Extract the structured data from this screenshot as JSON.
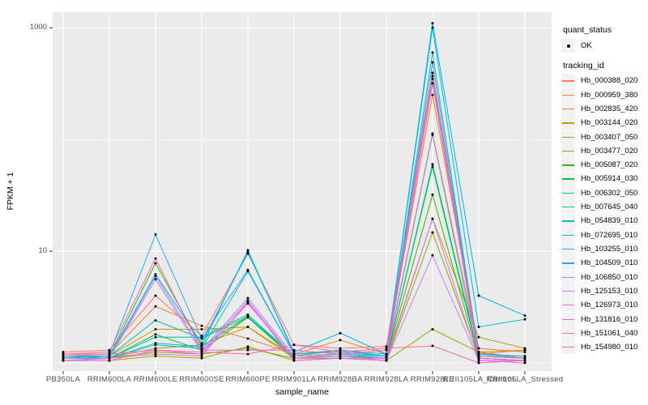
{
  "style": {
    "panel_bg": "#EBEBEB",
    "gridline": "#FFFFFF",
    "point": "#000000",
    "tick_color": "#333333",
    "tick_label_color": "#4D4D4D",
    "axis_title_color": "#000000",
    "legend_key_bg": "#F2F2F2"
  },
  "chart_data": {
    "type": "line",
    "title": "",
    "xlabel": "sample_name",
    "ylabel": "FPKM + 1",
    "y_scale": "log10",
    "ylim": [
      1,
      1320
    ],
    "y_ticks": [
      1000,
      10
    ],
    "y_major_gridlines": [
      10,
      1000
    ],
    "y_minor_gridlines": [
      1,
      100
    ],
    "grid": true,
    "point_shape": "filled-circle",
    "legend": {
      "position": "right",
      "quant_status_title": "quant_status",
      "quant_status_items": [
        "OK"
      ],
      "series_title": "tracking_id"
    },
    "categories": [
      "PB350LA",
      "RRIM600LA",
      "RRIM600LE",
      "RRIM600SE",
      "RRIM600PE",
      "RRIM901LA",
      "RRIM928BA",
      "RRIM928LA",
      "RRIM928LE",
      "RRII105LA_Control",
      "RRII105LA_Stressed"
    ],
    "series": [
      {
        "name": "Hb_000388_020",
        "color": "#F8766D",
        "values": [
          1.25,
          1.3,
          4.0,
          1.75,
          9.5,
          1.45,
          1.35,
          1.4,
          395,
          1.2,
          1.3
        ]
      },
      {
        "name": "Hb_000959_380",
        "color": "#EA8331",
        "values": [
          1.2,
          1.2,
          3.2,
          2.15,
          1.65,
          1.2,
          1.6,
          1.2,
          250,
          1.35,
          1.25
        ]
      },
      {
        "name": "Hb_002835_420",
        "color": "#D89000",
        "values": [
          1.1,
          1.15,
          2.0,
          2.0,
          2.1,
          1.15,
          1.3,
          1.15,
          113,
          1.25,
          1.3
        ]
      },
      {
        "name": "Hb_003144_020",
        "color": "#C09B00",
        "values": [
          1.1,
          1.1,
          1.35,
          1.45,
          2.1,
          1.1,
          1.2,
          1.1,
          19.5,
          1.7,
          1.35
        ]
      },
      {
        "name": "Hb_003407_050",
        "color": "#A3A500",
        "values": [
          1.05,
          1.05,
          1.15,
          1.1,
          1.4,
          1.05,
          1.1,
          1.05,
          2.0,
          1.25,
          1.1
        ]
      },
      {
        "name": "Hb_003477_020",
        "color": "#7CAE00",
        "values": [
          1.05,
          1.1,
          1.25,
          1.2,
          1.35,
          1.1,
          1.1,
          1.05,
          14.7,
          1.1,
          1.05
        ]
      },
      {
        "name": "Hb_005087_020",
        "color": "#39B600",
        "values": [
          1.1,
          1.15,
          7.8,
          1.4,
          2.6,
          1.1,
          1.15,
          1.1,
          32,
          1.1,
          1.05
        ]
      },
      {
        "name": "Hb_005914_030",
        "color": "#00BB4E",
        "values": [
          1.05,
          1.1,
          1.8,
          1.3,
          2.55,
          1.1,
          1.15,
          1.1,
          57,
          1.1,
          1.05
        ]
      },
      {
        "name": "Hb_006302_050",
        "color": "#00C087",
        "values": [
          1.1,
          1.1,
          1.7,
          1.7,
          2.7,
          1.15,
          1.2,
          1.1,
          60,
          1.15,
          1.1
        ]
      },
      {
        "name": "Hb_007645_040",
        "color": "#00C1A9",
        "values": [
          1.1,
          1.15,
          2.4,
          1.65,
          2.6,
          1.15,
          1.2,
          1.15,
          370,
          1.15,
          1.1
        ]
      },
      {
        "name": "Hb_054839_010",
        "color": "#00BFC4",
        "values": [
          1.1,
          1.1,
          1.45,
          1.35,
          6.6,
          1.2,
          1.25,
          1.15,
          600,
          1.2,
          1.15
        ]
      },
      {
        "name": "Hb_072695_010",
        "color": "#00BAE0",
        "values": [
          1.15,
          1.1,
          1.5,
          1.4,
          10.2,
          1.2,
          1.3,
          1.2,
          1000,
          2.1,
          2.45
        ]
      },
      {
        "name": "Hb_103255_010",
        "color": "#00B0F6",
        "values": [
          1.15,
          1.15,
          6.2,
          1.5,
          9.8,
          1.25,
          1.85,
          1.2,
          1100,
          4.0,
          2.65
        ]
      },
      {
        "name": "Hb_104509_010",
        "color": "#35A2FF",
        "values": [
          1.15,
          1.2,
          14.1,
          1.65,
          6.8,
          1.2,
          1.3,
          1.15,
          490,
          1.2,
          1.1
        ]
      },
      {
        "name": "Hb_106850_010",
        "color": "#9590FF",
        "values": [
          1.1,
          1.1,
          6.0,
          1.3,
          3.8,
          1.15,
          1.2,
          1.1,
          110,
          1.1,
          1.05
        ]
      },
      {
        "name": "Hb_125153_010",
        "color": "#C77CFF",
        "values": [
          1.05,
          1.1,
          5.6,
          1.25,
          3.6,
          1.1,
          1.15,
          1.05,
          9.2,
          1.05,
          1.05
        ]
      },
      {
        "name": "Hb_126973_010",
        "color": "#E76BF3",
        "values": [
          1.05,
          1.05,
          1.3,
          1.2,
          3.4,
          1.1,
          1.1,
          1.05,
          19.5,
          1.05,
          1.0
        ]
      },
      {
        "name": "Hb_131816_010",
        "color": "#FA62DB",
        "values": [
          1.05,
          1.1,
          1.2,
          1.15,
          3.5,
          1.05,
          1.1,
          1.1,
          318,
          1.1,
          1.05
        ]
      },
      {
        "name": "Hb_151061_040",
        "color": "#FF62BC",
        "values": [
          1.2,
          1.25,
          8.6,
          1.3,
          1.3,
          1.3,
          1.2,
          1.3,
          350,
          1.15,
          1.1
        ]
      },
      {
        "name": "Hb_154980_010",
        "color": "#FF6A98",
        "values": [
          1.15,
          1.2,
          1.3,
          1.25,
          1.2,
          1.45,
          1.25,
          1.35,
          1.42,
          1.0,
          1.05
        ]
      }
    ]
  }
}
